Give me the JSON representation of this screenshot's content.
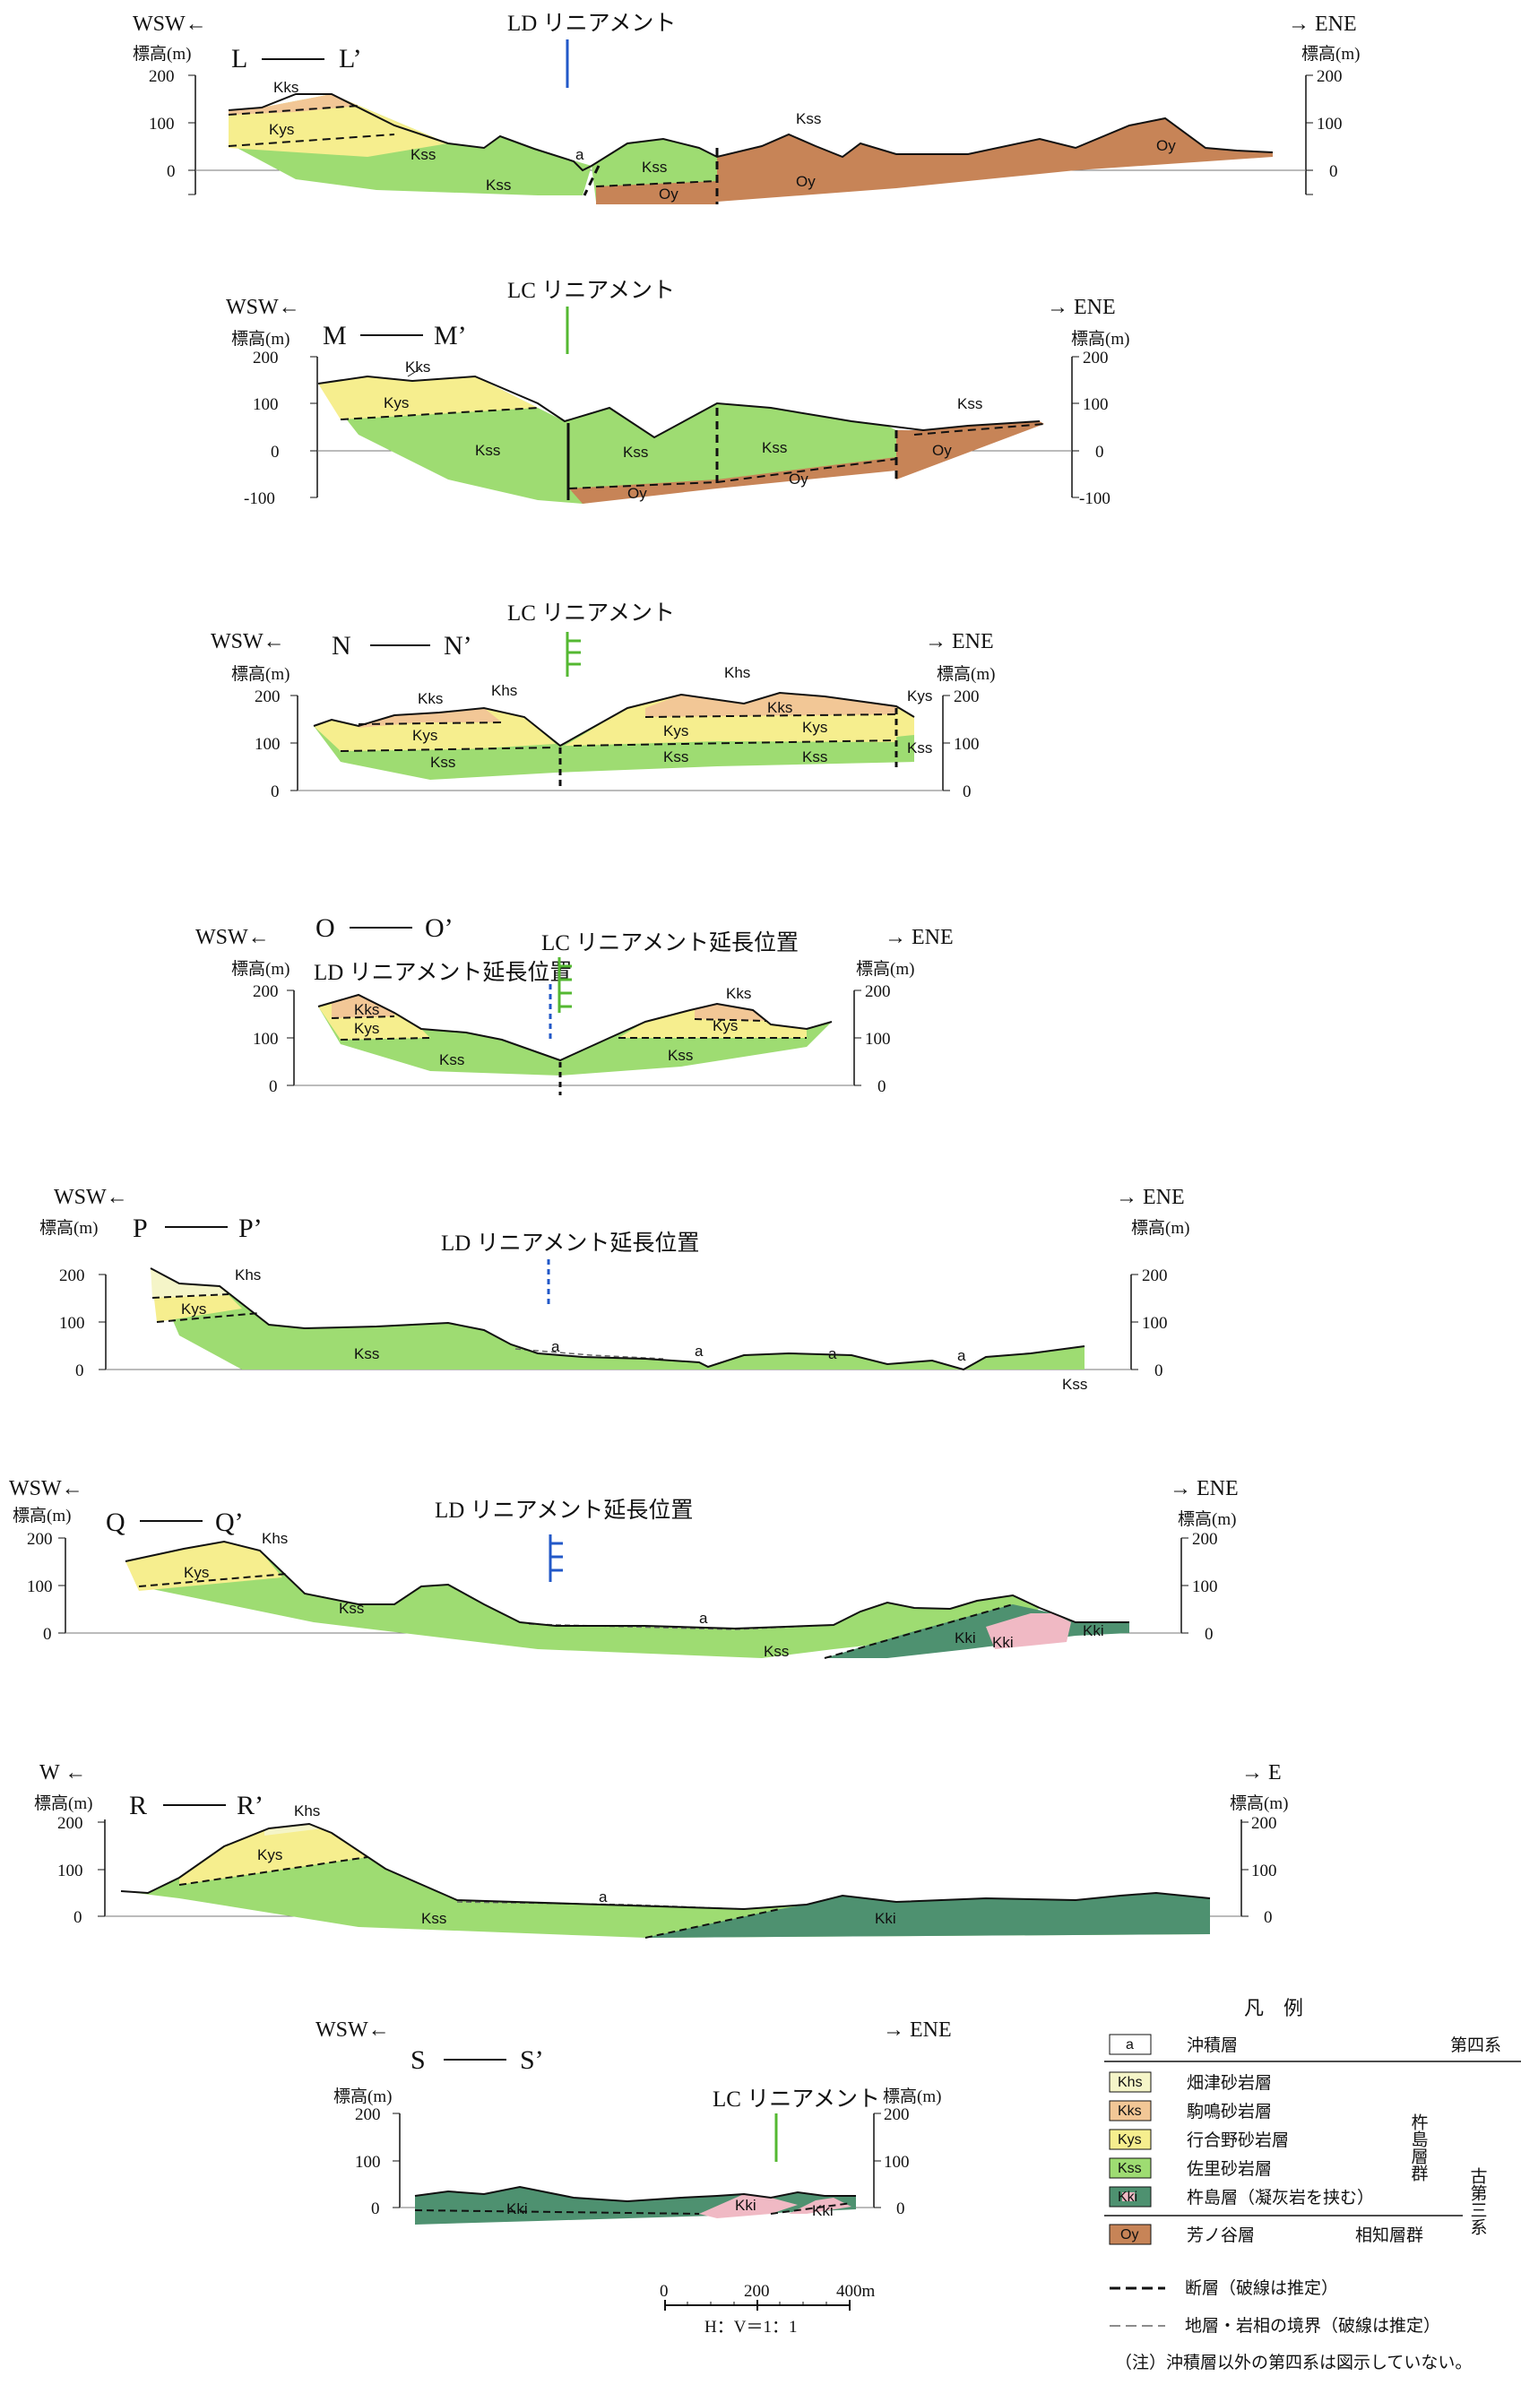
{
  "colors": {
    "Khs": "#f5f5c8",
    "Kks": "#f2c796",
    "Kys": "#f6ee8e",
    "Kss": "#9edc72",
    "Kki": "#4e9170",
    "Kki_pink": "#f0b9c4",
    "Oy": "#c78457",
    "lineament_LD": "#2258c8",
    "lineament_LC": "#54b832"
  },
  "common": {
    "elev_label": "標高(m)",
    "dir_wsw": "WSW←",
    "dir_ene": "→ ENE",
    "dir_w": "W ←",
    "dir_e": "→ E"
  },
  "sections": {
    "L": {
      "name_left": "L",
      "name_right": "L’",
      "lineament": "LD リニアメント",
      "ticks": [
        "200",
        "100",
        "0"
      ]
    },
    "M": {
      "name_left": "M",
      "name_right": "M’",
      "lineament": "LC リニアメント",
      "ticks": [
        "200",
        "100",
        "0",
        "-100"
      ]
    },
    "N": {
      "name_left": "N",
      "name_right": "N’",
      "lineament": "LC リニアメント",
      "ticks": [
        "200",
        "100",
        "0"
      ]
    },
    "O": {
      "name_left": "O",
      "name_right": "O’",
      "lineament": "LC リニアメント延長位置",
      "lineament2": "LD リニアメント延長位置",
      "ticks": [
        "200",
        "100",
        "0"
      ]
    },
    "P": {
      "name_left": "P",
      "name_right": "P’",
      "lineament": "LD リニアメント延長位置",
      "ticks": [
        "200",
        "100",
        "0"
      ]
    },
    "Q": {
      "name_left": "Q",
      "name_right": "Q’",
      "lineament": "LD リニアメント延長位置",
      "ticks": [
        "200",
        "100",
        "0"
      ]
    },
    "R": {
      "name_left": "R",
      "name_right": "R’",
      "ticks": [
        "200",
        "100",
        "0"
      ]
    },
    "S": {
      "name_left": "S",
      "name_right": "S’",
      "lineament": "LC リニアメント",
      "ticks": [
        "200",
        "100",
        "0"
      ]
    }
  },
  "units": [
    "a",
    "Khs",
    "Kks",
    "Kys",
    "Kss",
    "Kki",
    "Oy"
  ],
  "legend": {
    "title": "凡　例",
    "items": [
      {
        "code": "a",
        "name": "沖積層"
      },
      {
        "code": "Khs",
        "name": "畑津砂岩層"
      },
      {
        "code": "Kks",
        "name": "駒鳴砂岩層"
      },
      {
        "code": "Kys",
        "name": "行合野砂岩層"
      },
      {
        "code": "Kss",
        "name": "佐里砂岩層"
      },
      {
        "code": "Kki",
        "name": "杵島層（凝灰岩を挟む）"
      },
      {
        "code": "Oy",
        "name": "芳ノ谷層"
      }
    ],
    "quaternary": "第四系",
    "kishima_group": "杵島層群",
    "paleogene": "古第三系",
    "ochi_group": "相知層群",
    "fault": "断層（破線は推定）",
    "boundary": "地層・岩相の境界（破線は推定）",
    "note": "（注）沖積層以外の第四系は図示していない。",
    "scale_0": "0",
    "scale_200": "200",
    "scale_400": "400m",
    "hv": "H：V＝1：1"
  }
}
